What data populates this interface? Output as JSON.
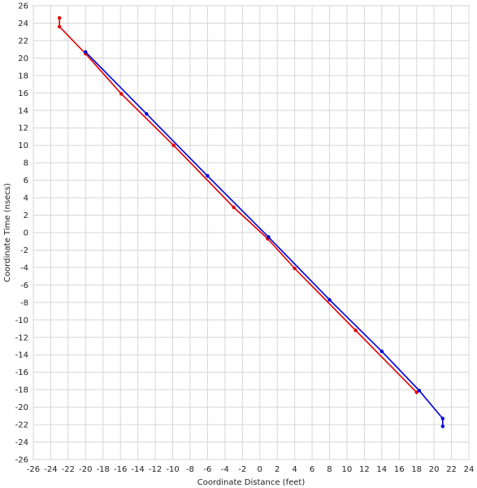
{
  "chart_data": {
    "type": "line",
    "title": "",
    "xlabel": "Coordinate Distance (feet)",
    "ylabel": "Coordinate Time (nsecs)",
    "xlim": [
      -26,
      24
    ],
    "ylim": [
      -26,
      26
    ],
    "x_ticks": [
      -26,
      -24,
      -22,
      -20,
      -18,
      -16,
      -14,
      -12,
      -10,
      -8,
      -6,
      -4,
      -2,
      0,
      2,
      4,
      6,
      8,
      10,
      12,
      14,
      16,
      18,
      20,
      22,
      24
    ],
    "y_ticks": [
      -26,
      -24,
      -22,
      -20,
      -18,
      -16,
      -14,
      -12,
      -10,
      -8,
      -6,
      -4,
      -2,
      0,
      2,
      4,
      6,
      8,
      10,
      12,
      14,
      16,
      18,
      20,
      22,
      24,
      26
    ],
    "grid": true,
    "legend": "none",
    "series": [
      {
        "color": "#e00000",
        "points": [
          {
            "x": -23.0,
            "y": 24.6
          },
          {
            "x": -23.0,
            "y": 23.6
          },
          {
            "x": -20.0,
            "y": 20.5
          },
          {
            "x": -15.9,
            "y": 15.9
          },
          {
            "x": -9.9,
            "y": 10.0
          },
          {
            "x": -3.0,
            "y": 2.9
          },
          {
            "x": 0.9,
            "y": -0.7
          },
          {
            "x": 4.0,
            "y": -4.1
          },
          {
            "x": 11.0,
            "y": -11.2
          },
          {
            "x": 18.0,
            "y": -18.3
          }
        ]
      },
      {
        "color": "#0000e0",
        "points": [
          {
            "x": -20.0,
            "y": 20.7
          },
          {
            "x": -13.0,
            "y": 13.6
          },
          {
            "x": -6.0,
            "y": 6.5
          },
          {
            "x": 1.0,
            "y": -0.5
          },
          {
            "x": 8.0,
            "y": -7.7
          },
          {
            "x": 14.0,
            "y": -13.6
          },
          {
            "x": 18.3,
            "y": -18.1
          },
          {
            "x": 21.0,
            "y": -21.3
          },
          {
            "x": 21.0,
            "y": -22.2
          }
        ]
      }
    ]
  }
}
